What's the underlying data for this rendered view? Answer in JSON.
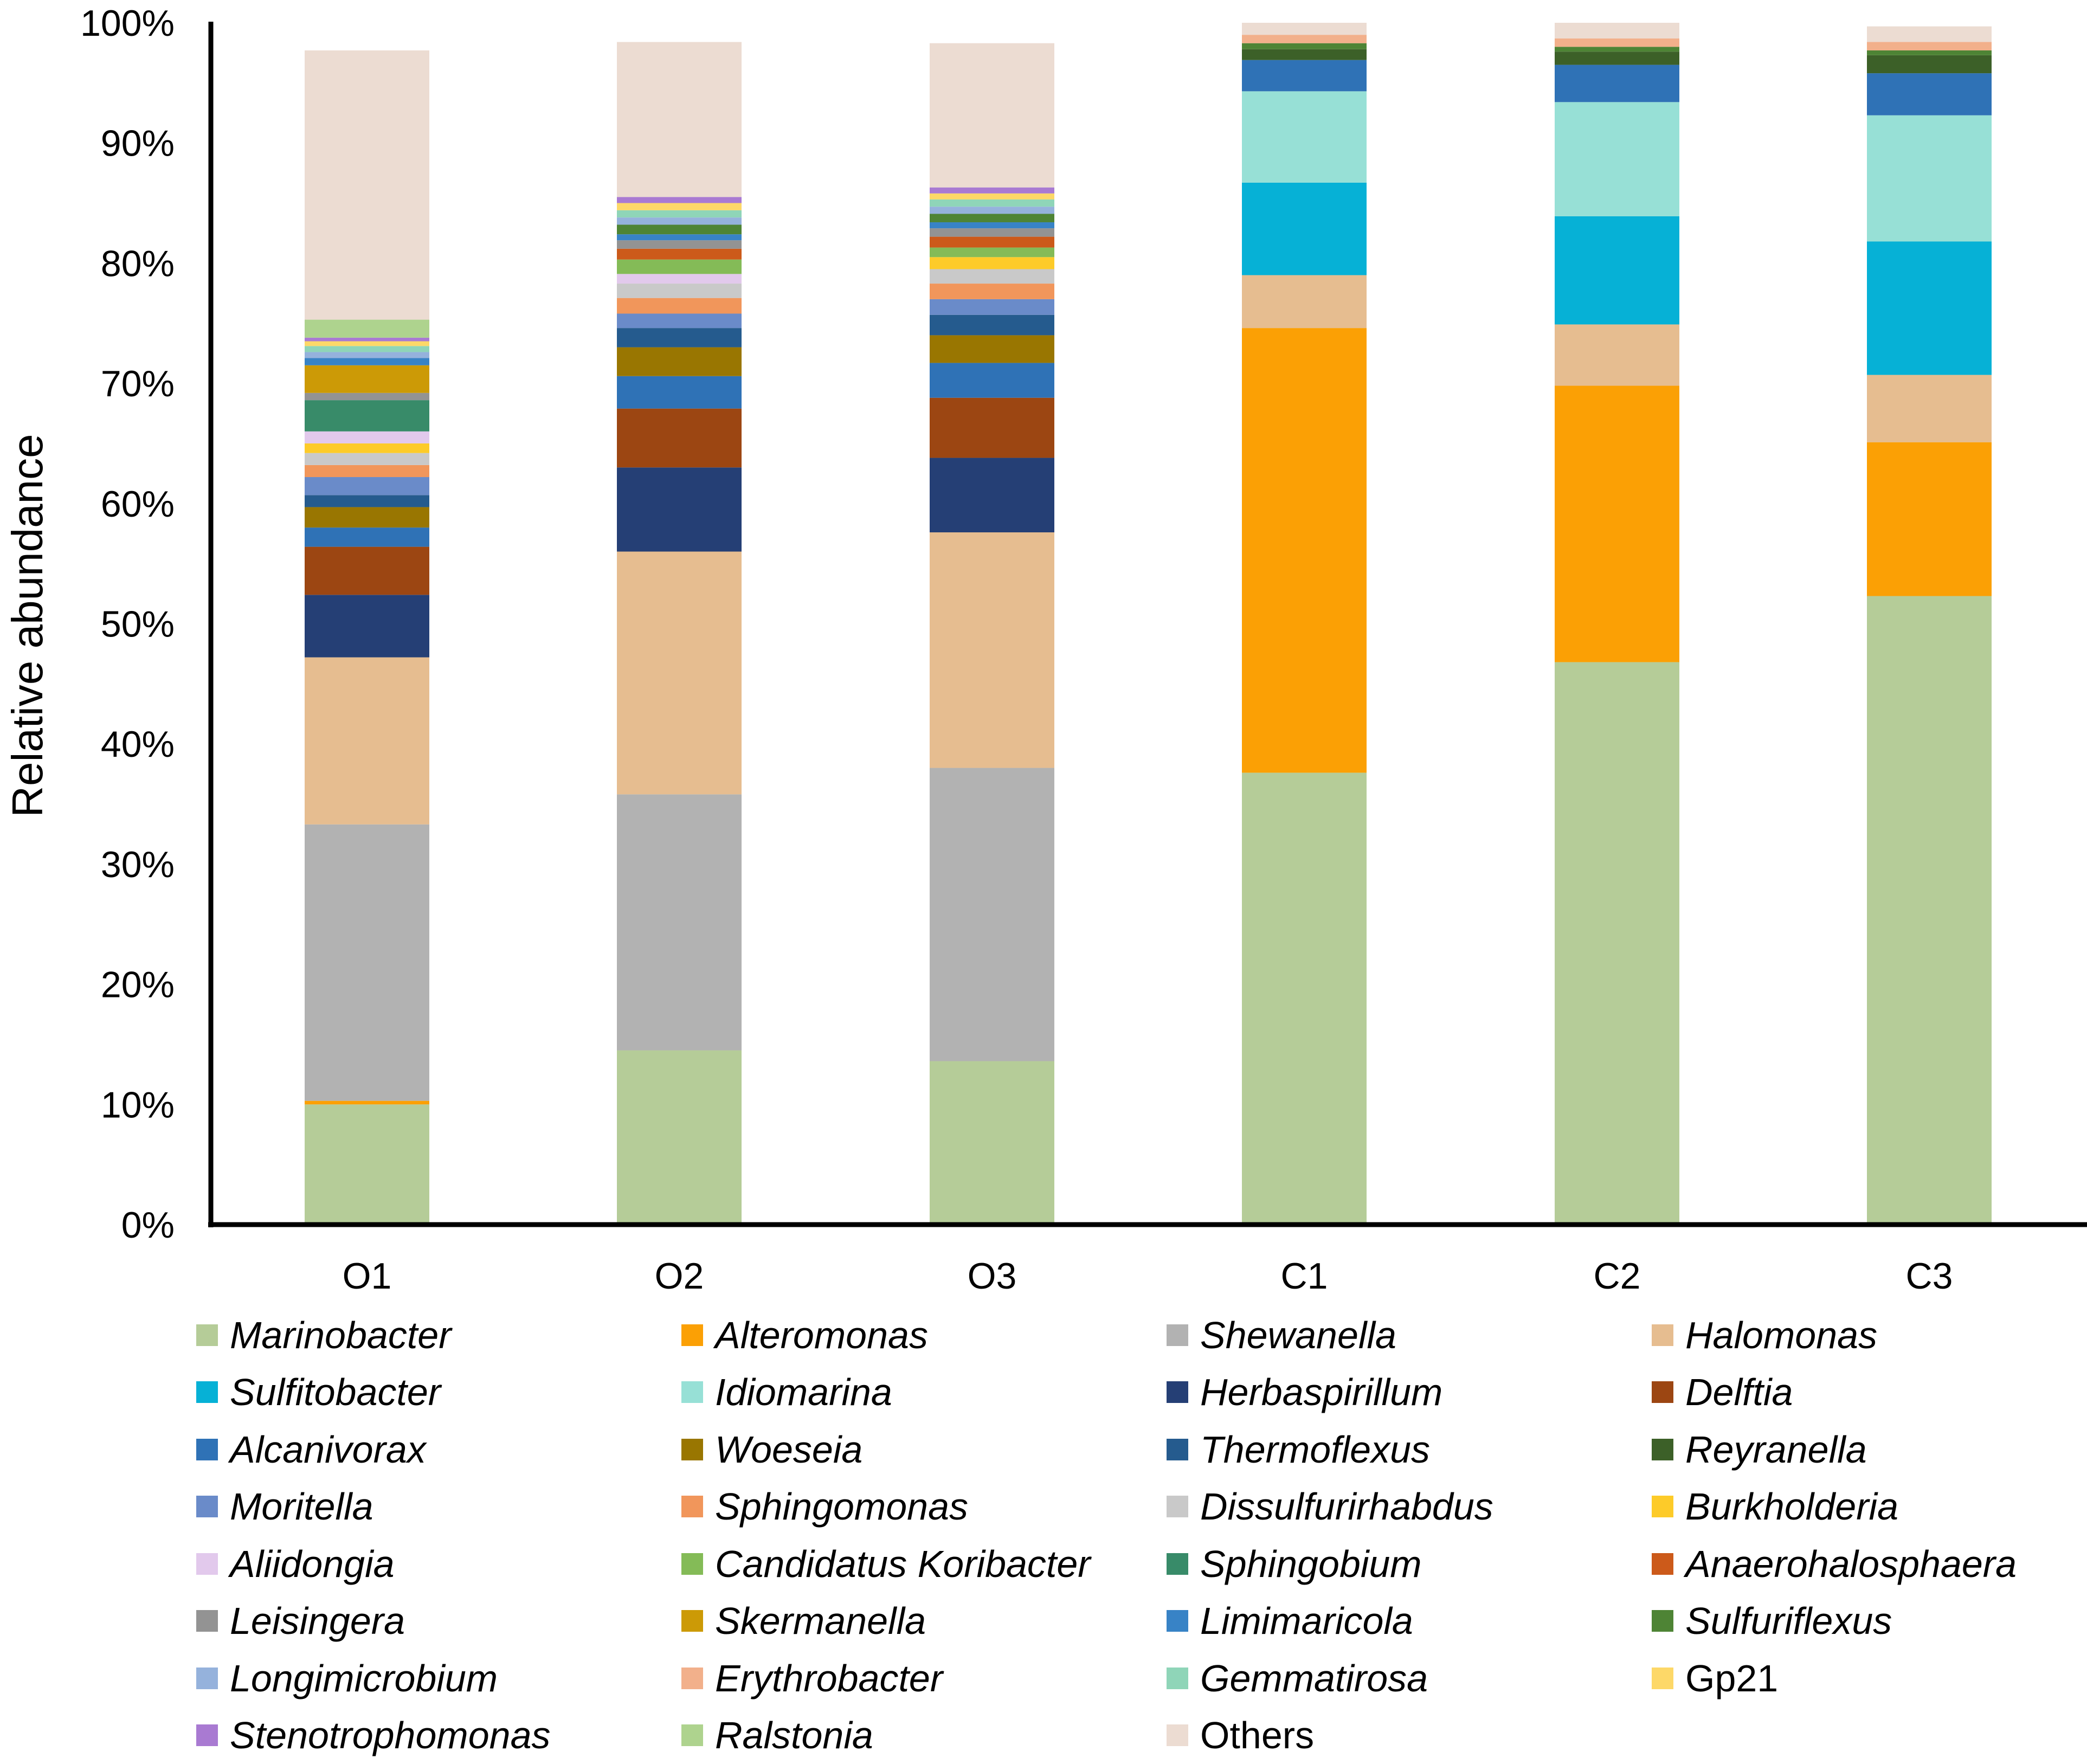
{
  "chart_data": {
    "type": "bar",
    "stacked": true,
    "title": "",
    "xlabel": "",
    "ylabel": "Relative abundance",
    "ylim": [
      0,
      100
    ],
    "yticks": [
      "0%",
      "10%",
      "20%",
      "30%",
      "40%",
      "50%",
      "60%",
      "70%",
      "80%",
      "90%",
      "100%"
    ],
    "categories": [
      "O1",
      "O2",
      "O3",
      "C1",
      "C2",
      "C3"
    ],
    "series": [
      {
        "name": "Marinobacter",
        "italic": true,
        "color": "#b5cc98",
        "values": [
          10.0,
          14.5,
          13.6,
          37.6,
          46.8,
          52.3
        ]
      },
      {
        "name": "Alteromonas",
        "italic": true,
        "color": "#fba005",
        "values": [
          0.3,
          0.0,
          0.0,
          37.0,
          23.0,
          12.8
        ]
      },
      {
        "name": "Shewanella",
        "italic": true,
        "color": "#b2b2b2",
        "values": [
          23.0,
          21.3,
          24.4,
          0.0,
          0.0,
          0.0
        ]
      },
      {
        "name": "Halomonas",
        "italic": true,
        "color": "#e6bd90",
        "values": [
          13.9,
          20.2,
          19.6,
          4.4,
          5.1,
          5.6
        ]
      },
      {
        "name": "Sulfitobacter",
        "italic": true,
        "color": "#06b1d6",
        "values": [
          0.0,
          0.0,
          0.0,
          7.7,
          9.0,
          11.1
        ]
      },
      {
        "name": "Idiomarina",
        "italic": true,
        "color": "#97e0d6",
        "values": [
          0.0,
          0.0,
          0.0,
          7.6,
          9.5,
          10.5
        ]
      },
      {
        "name": "Herbaspirillum",
        "italic": true,
        "color": "#253f75",
        "values": [
          5.2,
          7.0,
          6.2,
          0.0,
          0.0,
          0.0
        ]
      },
      {
        "name": "Delftia",
        "italic": true,
        "color": "#9c4612",
        "values": [
          4.0,
          4.9,
          5.0,
          0.0,
          0.0,
          0.0
        ]
      },
      {
        "name": "Alcanivorax",
        "italic": true,
        "color": "#2f72b6",
        "values": [
          1.6,
          2.7,
          2.9,
          2.6,
          3.1,
          3.5
        ]
      },
      {
        "name": "Woeseia",
        "italic": true,
        "color": "#997601",
        "values": [
          1.7,
          2.4,
          2.3,
          0.0,
          0.0,
          0.0
        ]
      },
      {
        "name": "Thermoflexus",
        "italic": true,
        "color": "#255b8e",
        "values": [
          1.0,
          1.6,
          1.7,
          0.0,
          0.0,
          0.0
        ]
      },
      {
        "name": "Reyranella",
        "italic": true,
        "color": "#3c6028",
        "values": [
          0.0,
          0.0,
          0.0,
          0.9,
          1.1,
          1.5
        ]
      },
      {
        "name": "Moritella",
        "italic": true,
        "color": "#6a8bc9",
        "values": [
          1.5,
          1.2,
          1.3,
          0.0,
          0.0,
          0.0
        ]
      },
      {
        "name": "Sphingomonas",
        "italic": true,
        "color": "#f1965b",
        "values": [
          1.0,
          1.3,
          1.3,
          0.0,
          0.0,
          0.0
        ]
      },
      {
        "name": "Dissulfurirhabdus",
        "italic": true,
        "color": "#c9c9c9",
        "values": [
          1.0,
          1.2,
          1.2,
          0.0,
          0.0,
          0.0
        ]
      },
      {
        "name": "Burkholderia",
        "italic": true,
        "color": "#fdcb29",
        "values": [
          0.8,
          0.0,
          1.0,
          0.0,
          0.0,
          0.0
        ]
      },
      {
        "name": "Aliidongia",
        "italic": true,
        "color": "#e2c9ec",
        "values": [
          1.0,
          0.8,
          0.0,
          0.0,
          0.0,
          0.0
        ]
      },
      {
        "name": "Candidatus Koribacter",
        "italic": true,
        "color": "#84bb57",
        "values": [
          0.0,
          1.2,
          0.8,
          0.0,
          0.0,
          0.0
        ]
      },
      {
        "name": "Sphingobium",
        "italic": true,
        "color": "#388b69",
        "values": [
          2.6,
          0.0,
          0.0,
          0.0,
          0.0,
          0.0
        ]
      },
      {
        "name": "Anaerohalosphaera",
        "italic": true,
        "color": "#cc5a1a",
        "values": [
          0.0,
          0.9,
          0.9,
          0.0,
          0.0,
          0.0
        ]
      },
      {
        "name": "Leisingera",
        "italic": true,
        "color": "#939393",
        "values": [
          0.6,
          0.7,
          0.7,
          0.0,
          0.0,
          0.0
        ]
      },
      {
        "name": "Skermanella",
        "italic": true,
        "color": "#cc9a06",
        "values": [
          2.3,
          0.0,
          0.0,
          0.0,
          0.0,
          0.0
        ]
      },
      {
        "name": "Limimaricola",
        "italic": true,
        "color": "#3883c6",
        "values": [
          0.6,
          0.5,
          0.5,
          0.0,
          0.0,
          0.0
        ]
      },
      {
        "name": "Sulfuriflexus",
        "italic": true,
        "color": "#4e8435",
        "values": [
          0.0,
          0.8,
          0.7,
          0.5,
          0.4,
          0.4
        ]
      },
      {
        "name": "Longimicrobium",
        "italic": true,
        "color": "#95b2dc",
        "values": [
          0.5,
          0.6,
          0.6,
          0.0,
          0.0,
          0.0
        ]
      },
      {
        "name": "Erythrobacter",
        "italic": true,
        "color": "#f2b08b",
        "values": [
          0.0,
          0.0,
          0.0,
          0.7,
          0.7,
          0.7
        ]
      },
      {
        "name": "Gemmatirosa",
        "italic": true,
        "color": "#8fd5b8",
        "values": [
          0.5,
          0.6,
          0.6,
          0.0,
          0.0,
          0.0
        ]
      },
      {
        "name": "Gp21",
        "italic": false,
        "color": "#fdd868",
        "values": [
          0.4,
          0.6,
          0.5,
          0.0,
          0.0,
          0.0
        ]
      },
      {
        "name": "Stenotrophomonas",
        "italic": true,
        "color": "#a97ad2",
        "values": [
          0.3,
          0.5,
          0.5,
          0.0,
          0.0,
          0.0
        ]
      },
      {
        "name": "Ralstonia",
        "italic": true,
        "color": "#aed38e",
        "values": [
          1.5,
          0.0,
          0.0,
          0.0,
          0.0,
          0.0
        ]
      },
      {
        "name": "Others",
        "italic": false,
        "color": "#ecdcd2",
        "values": [
          22.4,
          12.9,
          12.0,
          1.0,
          1.3,
          1.3
        ]
      }
    ]
  }
}
